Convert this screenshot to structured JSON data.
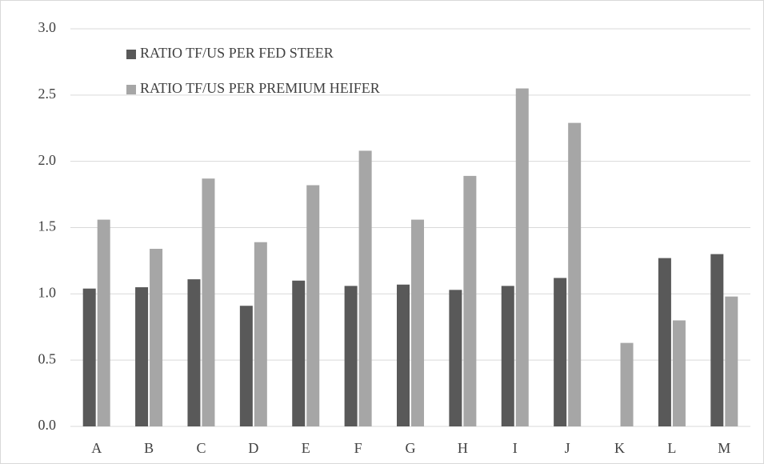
{
  "chart_data": {
    "type": "bar",
    "categories": [
      "A",
      "B",
      "C",
      "D",
      "E",
      "F",
      "G",
      "H",
      "I",
      "J",
      "K",
      "L",
      "M"
    ],
    "series": [
      {
        "name": "RATIO TF/US PER FED STEER",
        "color": "#595959",
        "values": [
          1.04,
          1.05,
          1.11,
          0.91,
          1.1,
          1.06,
          1.07,
          1.03,
          1.06,
          1.12,
          null,
          1.27,
          1.3
        ]
      },
      {
        "name": "RATIO TF/US PER PREMIUM HEIFER",
        "color": "#a6a6a6",
        "values": [
          1.56,
          1.34,
          1.87,
          1.39,
          1.82,
          2.08,
          1.56,
          1.89,
          2.55,
          2.29,
          0.63,
          0.8,
          0.98
        ]
      }
    ],
    "ylim": [
      0,
      3
    ],
    "yticks": [
      {
        "value": 0,
        "label": "0.0"
      },
      0.5,
      {
        "value": 1,
        "label": "1.0"
      },
      1.5,
      {
        "value": 2,
        "label": "2.0"
      },
      2.5,
      {
        "value": 3,
        "label": "3.0"
      }
    ],
    "grid": true,
    "legend": "top-left"
  }
}
